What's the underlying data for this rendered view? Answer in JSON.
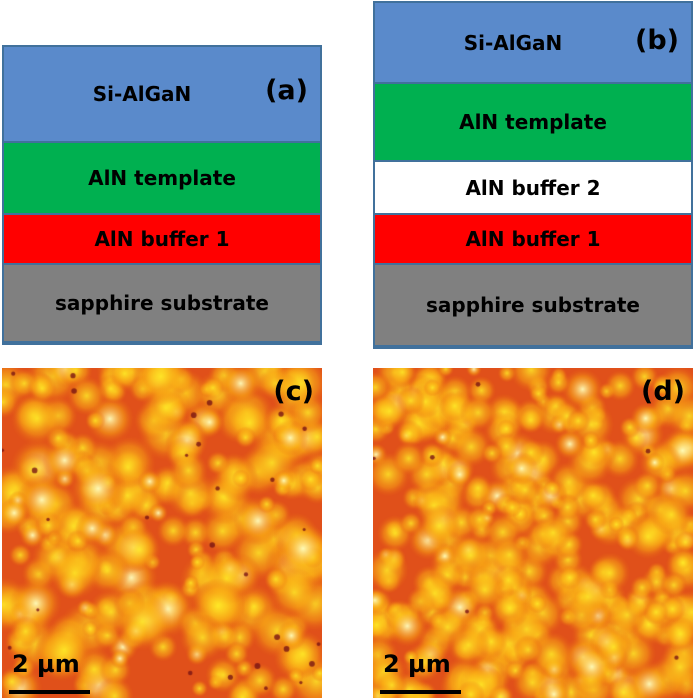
{
  "panel_a": {
    "label": "(a)",
    "layers": [
      {
        "name": "Si-AlGaN",
        "color": "#5a8acb"
      },
      {
        "name": "AlN template",
        "color": "#00b050"
      },
      {
        "name": "AlN buffer 1",
        "color": "#ff0000"
      },
      {
        "name": "sapphire substrate",
        "color": "#808080"
      }
    ]
  },
  "panel_b": {
    "label": "(b)",
    "layers": [
      {
        "name": "Si-AlGaN",
        "color": "#5a8acb"
      },
      {
        "name": "AlN template",
        "color": "#00b050"
      },
      {
        "name": "AlN buffer 2",
        "color": "#ffffff"
      },
      {
        "name": "AlN buffer 1",
        "color": "#ff0000"
      },
      {
        "name": "sapphire substrate",
        "color": "#808080"
      }
    ]
  },
  "panel_c": {
    "label": "(c)",
    "scale_bar": "2 µm"
  },
  "panel_d": {
    "label": "(d)",
    "scale_bar": "2 µm"
  }
}
